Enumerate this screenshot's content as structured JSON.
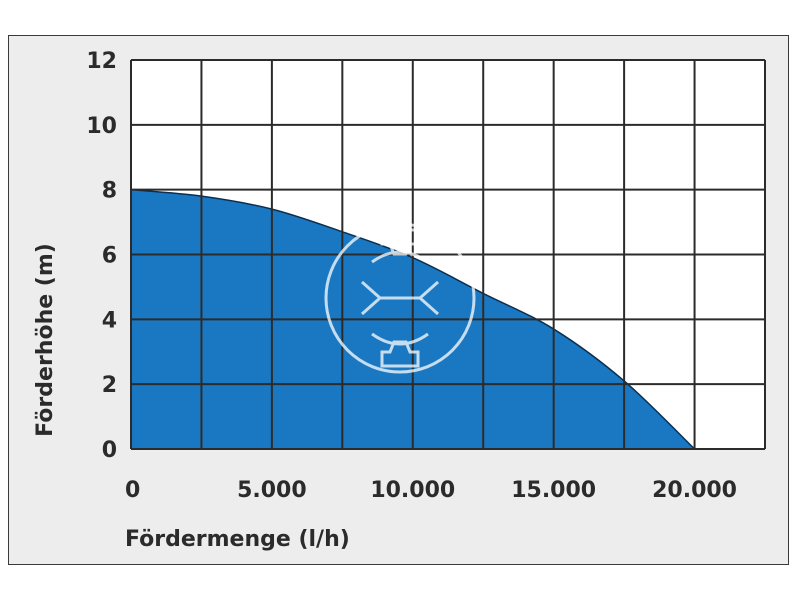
{
  "chart_data": {
    "type": "area",
    "xlabel": "Fördermenge (l/h)",
    "ylabel": "Förderhöhe (m)",
    "xlim": [
      0,
      22500
    ],
    "ylim": [
      0,
      12
    ],
    "x_ticks": [
      0,
      5000,
      10000,
      15000,
      20000
    ],
    "x_tick_labels": [
      "0",
      "5.000",
      "10.000",
      "15.000",
      "20.000"
    ],
    "y_ticks": [
      0,
      2,
      4,
      6,
      8,
      10,
      12
    ],
    "y_tick_labels": [
      "0",
      "2",
      "4",
      "6",
      "8",
      "10",
      "12"
    ],
    "grid": true,
    "x_grid_step": 2500,
    "y_grid_step": 2,
    "series": [
      {
        "x": [
          0,
          2500,
          5000,
          7500,
          10000,
          12500,
          15000,
          17500,
          20000
        ],
        "y": [
          8.0,
          7.8,
          7.4,
          6.7,
          5.9,
          4.8,
          3.7,
          2.1,
          0.0
        ]
      }
    ],
    "colors": {
      "fill": "#1a78c2",
      "edge": "#0d2f4f",
      "grid": "#2b2b2b",
      "plot_bg": "#ffffff",
      "frame_bg": "#ededee"
    }
  },
  "watermark": {
    "icon": "pump-logo-watermark-icon"
  }
}
